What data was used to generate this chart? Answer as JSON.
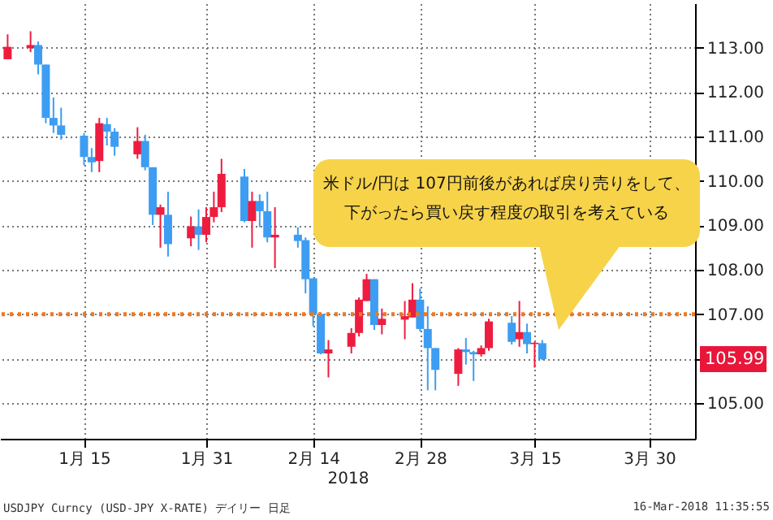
{
  "chart_data": {
    "type": "candlestick",
    "x": [
      "2018-01-05",
      "2018-01-08",
      "2018-01-09",
      "2018-01-10",
      "2018-01-11",
      "2018-01-12",
      "2018-01-15",
      "2018-01-16",
      "2018-01-17",
      "2018-01-18",
      "2018-01-19",
      "2018-01-22",
      "2018-01-23",
      "2018-01-24",
      "2018-01-25",
      "2018-01-26",
      "2018-01-29",
      "2018-01-30",
      "2018-01-31",
      "2018-02-01",
      "2018-02-02",
      "2018-02-05",
      "2018-02-06",
      "2018-02-07",
      "2018-02-08",
      "2018-02-09",
      "2018-02-12",
      "2018-02-13",
      "2018-02-14",
      "2018-02-15",
      "2018-02-16",
      "2018-02-19",
      "2018-02-20",
      "2018-02-21",
      "2018-02-22",
      "2018-02-23",
      "2018-02-26",
      "2018-02-27",
      "2018-02-28",
      "2018-03-01",
      "2018-03-02",
      "2018-03-05",
      "2018-03-06",
      "2018-03-07",
      "2018-03-08",
      "2018-03-09",
      "2018-03-12",
      "2018-03-13",
      "2018-03-14",
      "2018-03-15",
      "2018-03-16"
    ],
    "ohlc": [
      [
        112.74,
        113.3,
        112.74,
        113.02
      ],
      [
        112.99,
        113.37,
        112.9,
        113.06
      ],
      [
        113.06,
        113.14,
        112.4,
        112.62
      ],
      [
        112.62,
        112.62,
        111.3,
        111.42
      ],
      [
        111.42,
        111.88,
        111.08,
        111.25
      ],
      [
        111.25,
        111.65,
        110.93,
        111.04
      ],
      [
        111.02,
        111.08,
        110.35,
        110.54
      ],
      [
        110.54,
        110.74,
        110.2,
        110.42
      ],
      [
        110.45,
        111.42,
        110.2,
        111.3
      ],
      [
        111.28,
        111.42,
        110.8,
        111.11
      ],
      [
        111.11,
        111.19,
        110.57,
        110.77
      ],
      [
        110.6,
        111.21,
        110.5,
        110.9
      ],
      [
        110.9,
        111.04,
        110.24,
        110.31
      ],
      [
        110.31,
        110.31,
        109.01,
        109.24
      ],
      [
        109.24,
        109.47,
        108.5,
        109.41
      ],
      [
        109.24,
        109.76,
        108.3,
        108.58
      ],
      [
        108.71,
        109.2,
        108.53,
        108.98
      ],
      [
        108.98,
        109.36,
        108.45,
        108.79
      ],
      [
        108.79,
        109.41,
        108.62,
        109.19
      ],
      [
        109.19,
        109.76,
        109.07,
        109.41
      ],
      [
        109.41,
        110.5,
        109.3,
        110.16
      ],
      [
        110.1,
        110.27,
        109.07,
        109.1
      ],
      [
        109.1,
        109.76,
        108.5,
        109.55
      ],
      [
        109.55,
        109.7,
        108.96,
        109.32
      ],
      [
        109.32,
        109.76,
        108.62,
        108.73
      ],
      [
        108.73,
        109.41,
        108.04,
        108.79
      ],
      [
        108.79,
        108.96,
        108.5,
        108.65
      ],
      [
        108.67,
        108.73,
        107.47,
        107.79
      ],
      [
        107.81,
        107.81,
        106.73,
        107.01
      ],
      [
        107.01,
        107.01,
        106.1,
        106.12
      ],
      [
        106.12,
        106.42,
        105.58,
        106.21
      ],
      [
        106.27,
        106.69,
        106.12,
        106.58
      ],
      [
        106.58,
        107.38,
        106.5,
        107.33
      ],
      [
        107.3,
        107.91,
        107.3,
        107.79
      ],
      [
        107.79,
        107.79,
        106.65,
        106.76
      ],
      [
        106.76,
        107.13,
        106.55,
        106.9
      ],
      [
        106.88,
        107.3,
        106.44,
        106.96
      ],
      [
        106.93,
        107.7,
        106.93,
        107.33
      ],
      [
        107.33,
        107.58,
        106.61,
        106.67
      ],
      [
        106.67,
        107.18,
        105.29,
        106.24
      ],
      [
        106.24,
        106.24,
        105.29,
        105.75
      ],
      [
        105.66,
        106.24,
        105.39,
        106.21
      ],
      [
        106.21,
        106.47,
        105.87,
        106.15
      ],
      [
        106.15,
        106.18,
        105.5,
        106.1
      ],
      [
        106.1,
        106.3,
        106.05,
        106.24
      ],
      [
        106.24,
        106.9,
        106.18,
        106.84
      ],
      [
        106.81,
        106.96,
        106.32,
        106.38
      ],
      [
        106.44,
        107.3,
        106.27,
        106.6
      ],
      [
        106.6,
        106.79,
        106.12,
        106.33
      ],
      [
        106.33,
        106.38,
        105.8,
        106.36
      ],
      [
        106.35,
        106.42,
        105.97,
        105.99
      ]
    ],
    "colors": [
      "#ee1d3f",
      "#ee1d3f",
      "#3d9df2",
      "#3d9df2",
      "#3d9df2",
      "#3d9df2",
      "#3d9df2",
      "#3d9df2",
      "#ee1d3f",
      "#3d9df2",
      "#3d9df2",
      "#ee1d3f",
      "#3d9df2",
      "#3d9df2",
      "#ee1d3f",
      "#3d9df2",
      "#ee1d3f",
      "#3d9df2",
      "#ee1d3f",
      "#ee1d3f",
      "#ee1d3f",
      "#3d9df2",
      "#ee1d3f",
      "#3d9df2",
      "#3d9df2",
      "#ee1d3f",
      "#3d9df2",
      "#3d9df2",
      "#3d9df2",
      "#3d9df2",
      "#ee1d3f",
      "#ee1d3f",
      "#ee1d3f",
      "#ee1d3f",
      "#3d9df2",
      "#ee1d3f",
      "#ee1d3f",
      "#ee1d3f",
      "#3d9df2",
      "#3d9df2",
      "#3d9df2",
      "#ee1d3f",
      "#3d9df2",
      "#3d9df2",
      "#ee1d3f",
      "#ee1d3f",
      "#3d9df2",
      "#ee1d3f",
      "#3d9df2",
      "#ee1d3f",
      "#3d9df2"
    ],
    "xlabel": "2018",
    "xlim": [
      "2018-01-04",
      "2018-04-05"
    ],
    "xticks": [
      {
        "value": "2018-01-15",
        "label": "1月 15"
      },
      {
        "value": "2018-01-31",
        "label": "1月 31"
      },
      {
        "value": "2018-02-14",
        "label": "2月 14"
      },
      {
        "value": "2018-02-28",
        "label": "2月 28"
      },
      {
        "value": "2018-03-15",
        "label": "3月 15"
      },
      {
        "value": "2018-03-30",
        "label": "3月 30"
      }
    ],
    "ylim": [
      104.2,
      114.0
    ],
    "yticks": [
      {
        "value": 105,
        "label": "105.00"
      },
      {
        "value": 106,
        "label": null
      },
      {
        "value": 107,
        "label": "107.00"
      },
      {
        "value": 108,
        "label": "108.00"
      },
      {
        "value": 109,
        "label": "109.00"
      },
      {
        "value": 110,
        "label": "110.00"
      },
      {
        "value": 111,
        "label": "111.00"
      },
      {
        "value": 112,
        "label": "112.00"
      },
      {
        "value": 113,
        "label": "113.00"
      }
    ],
    "grid": true,
    "ref_lines": [
      {
        "axis": "y",
        "value": 107,
        "color": "#f07820",
        "line_style": "dotted"
      }
    ],
    "annotations": [
      "米ドル/円は 107円前後があれば戻り売りをして、下がったら買い戻す程度の取引を考えている",
      "105.99",
      "USDJPY Curncy (USD-JPY X-RATE) デイリー 日足",
      "16-Mar-2018 11:35:55"
    ]
  }
}
